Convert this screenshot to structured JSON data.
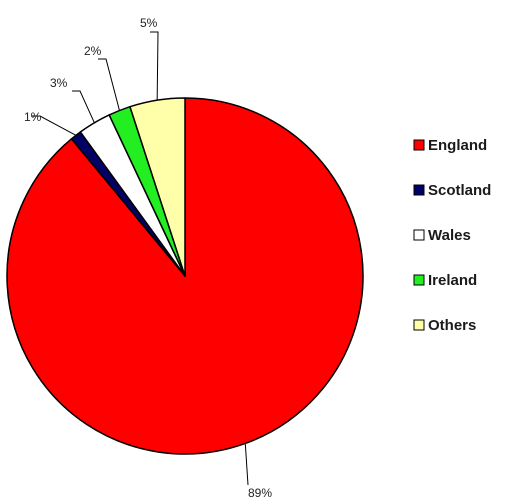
{
  "chart_data": {
    "type": "pie",
    "categories": [
      "England",
      "Scotland",
      "Wales",
      "Ireland",
      "Others"
    ],
    "values": [
      89,
      1,
      3,
      2,
      5
    ],
    "data_labels": [
      "89%",
      "1%",
      "3%",
      "2%",
      "5%"
    ],
    "colors": [
      "#ff0000",
      "#000066",
      "#ffffff",
      "#22ee22",
      "#ffffaa"
    ],
    "title": "",
    "legend": "right",
    "start": "top, clockwise"
  }
}
